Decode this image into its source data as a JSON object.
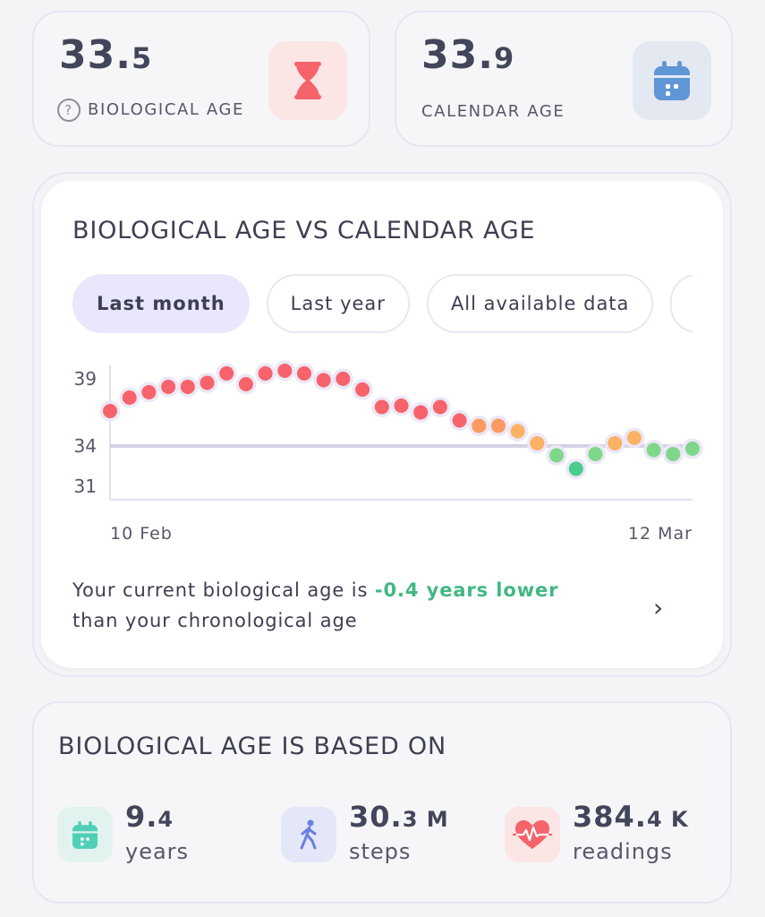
{
  "bio_card": {
    "value_int": "33.",
    "value_dec": "5",
    "help_symbol": "?",
    "label": "BIOLOGICAL AGE",
    "icon": "hourglass-icon",
    "icon_color": "#f5636b",
    "tile_color": "#fbe5e5"
  },
  "cal_card": {
    "value_int": "33.",
    "value_dec": "9",
    "label": "CALENDAR AGE",
    "icon": "calendar-icon",
    "icon_color": "#5f97d6",
    "tile_color": "#e3e8f1"
  },
  "chart_card": {
    "title": "BIOLOGICAL AGE VS CALENDAR AGE",
    "tabs": [
      {
        "label": "Last month",
        "active": true
      },
      {
        "label": "Last year",
        "active": false
      },
      {
        "label": "All available data",
        "active": false
      }
    ],
    "summary_prefix": "Your current biological age is ",
    "summary_highlight": "-0.4 years lower",
    "summary_suffix": "than your chronological age",
    "chevron": "›"
  },
  "chart_data": {
    "type": "scatter",
    "title": "",
    "x_tick_labels": [
      "10 Feb",
      "12 Mar"
    ],
    "y_ticks": [
      39,
      34,
      31
    ],
    "ylim": [
      30,
      40
    ],
    "reference_line": 34,
    "values": [
      36.6,
      37.6,
      38.0,
      38.4,
      38.4,
      38.7,
      39.4,
      38.6,
      39.4,
      39.6,
      39.4,
      38.9,
      39.0,
      38.2,
      36.9,
      37.0,
      36.5,
      36.9,
      35.9,
      35.5,
      35.5,
      35.1,
      34.2,
      33.3,
      32.3,
      33.4,
      34.2,
      34.6,
      33.7,
      33.4,
      33.8
    ],
    "colors": {
      "high": "#f7636a",
      "mid": "#fb9a62",
      "near": "#fbb264",
      "low": "#7fd88a",
      "lowest": "#4ccc8c",
      "halo": "#ece7f7",
      "ref_line": "#d4d3e4",
      "axis": "#e1e0ea"
    }
  },
  "based_card": {
    "title": "BIOLOGICAL AGE IS BASED ON",
    "metrics": [
      {
        "value_main": "9.",
        "value_small": "4",
        "suffix": "",
        "unit": "years",
        "icon": "calendar-icon",
        "icon_color": "#4fcfb6",
        "tile_color": "#e2f3ef"
      },
      {
        "value_main": "30.",
        "value_small": "3",
        "suffix": " M",
        "unit": "steps",
        "icon": "walking-icon",
        "icon_color": "#6a7ee0",
        "tile_color": "#e4e7f7"
      },
      {
        "value_main": "384.",
        "value_small": "4",
        "suffix": " K",
        "unit": "readings",
        "icon": "heart-rate-icon",
        "icon_color": "#f5636b",
        "tile_color": "#fbe5e5"
      }
    ]
  }
}
